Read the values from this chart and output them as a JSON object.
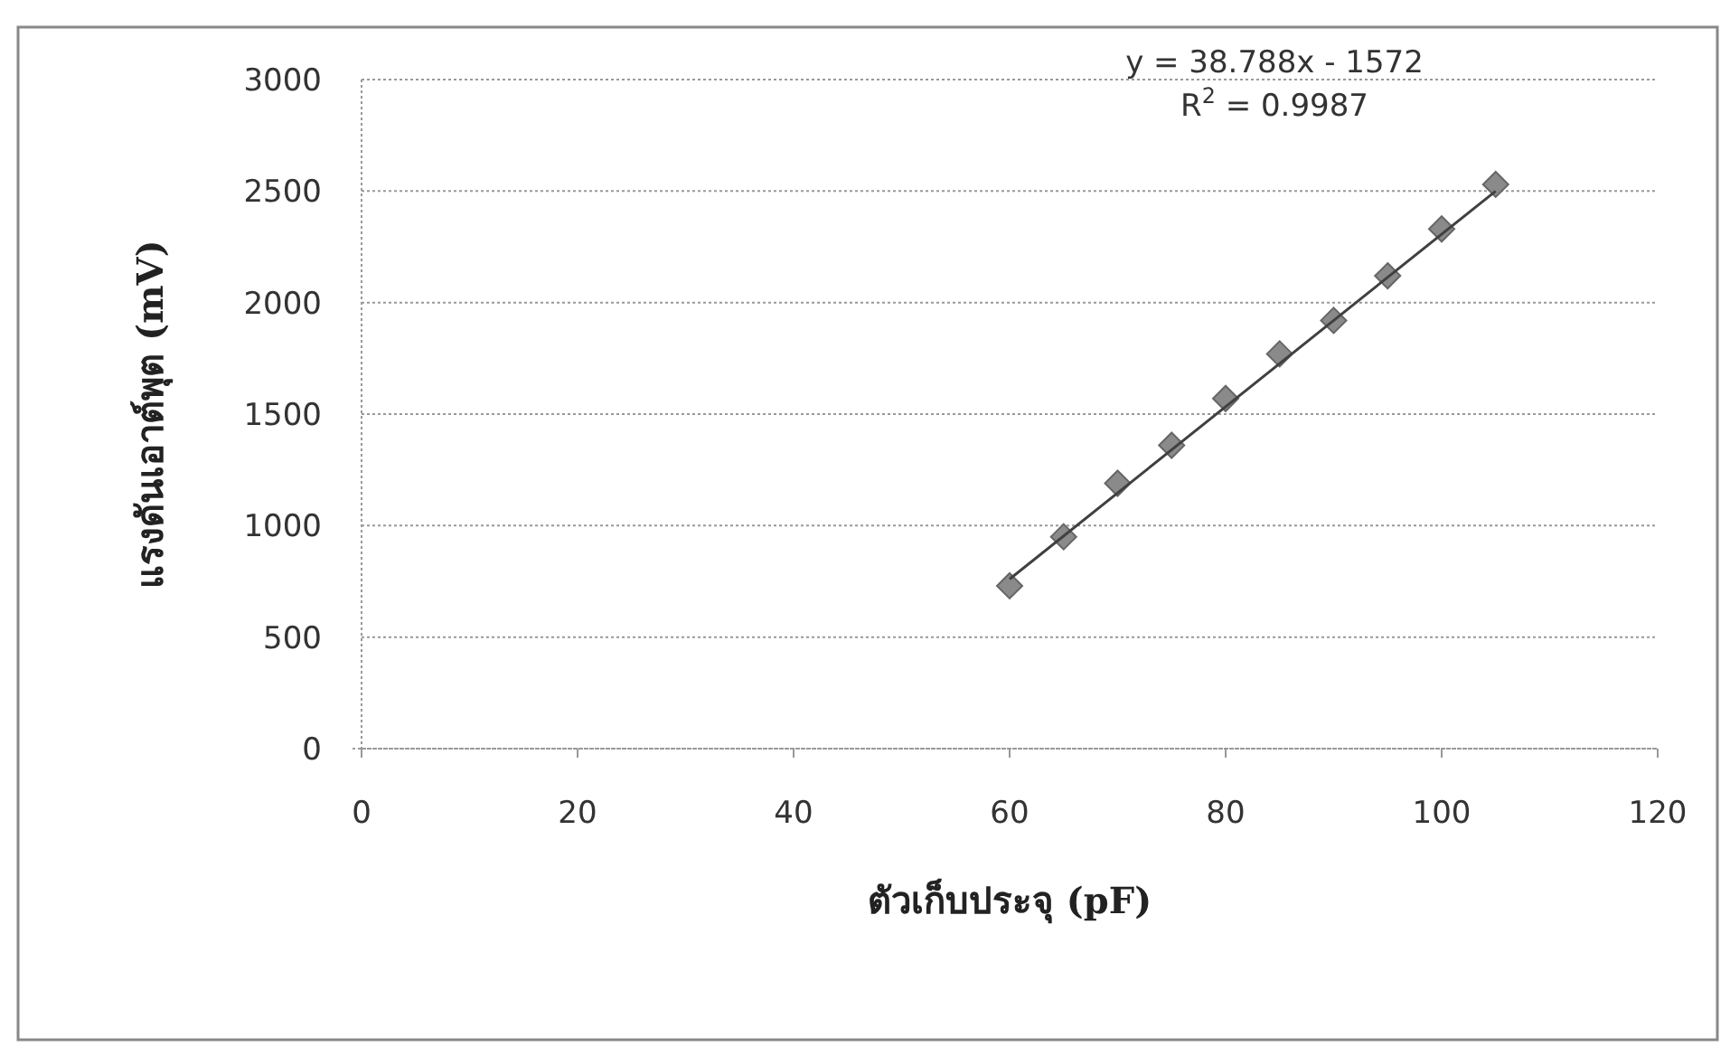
{
  "chart_data": {
    "type": "scatter",
    "xlabel": "ตัวเก็บประจุ (pF)",
    "ylabel": "แรงดันเอาต์พุต (mV)",
    "xlim": [
      0,
      120
    ],
    "ylim": [
      0,
      3000
    ],
    "xticks": [
      0,
      20,
      40,
      60,
      80,
      100,
      120
    ],
    "yticks": [
      0,
      500,
      1000,
      1500,
      2000,
      2500,
      3000
    ],
    "grid": "y",
    "annotations": [
      "y = 38.788x - 1572",
      "R$^{2}$ = 0.9987"
    ],
    "series": [
      {
        "color": "#8a8a8a",
        "marker": "diamond",
        "x": [
          60,
          65,
          70,
          75,
          80,
          85,
          90,
          95,
          100,
          105
        ],
        "values": [
          730,
          950,
          1190,
          1360,
          1570,
          1770,
          1920,
          2120,
          2330,
          2530
        ]
      },
      {
        "type": "line",
        "color": "#404040",
        "marker": "none",
        "x": [
          60,
          105
        ],
        "values": [
          760,
          2500
        ]
      }
    ]
  }
}
